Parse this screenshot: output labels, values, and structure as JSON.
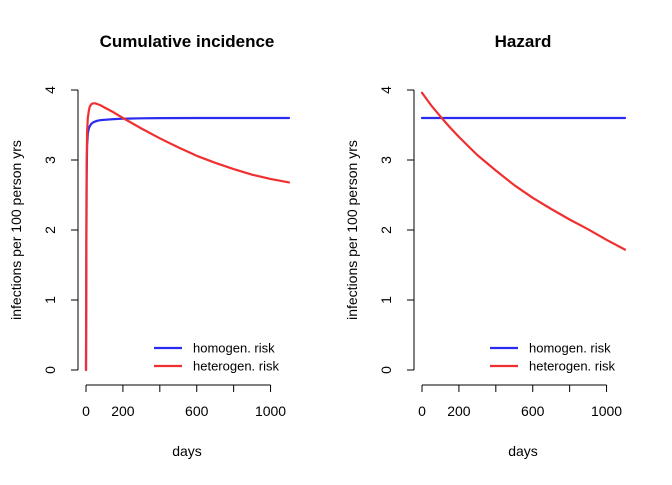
{
  "chart_data": [
    {
      "type": "line",
      "title": "Cumulative incidence",
      "xlabel": "days",
      "ylabel": "infections per 100 person yrs",
      "xlim": [
        0,
        1100
      ],
      "ylim": [
        0,
        4
      ],
      "xticks": [
        0,
        200,
        600,
        1000
      ],
      "xticks_minor": [
        400,
        800
      ],
      "yticks": [
        0,
        1,
        2,
        3,
        4
      ],
      "legend": {
        "position": "bottom-right"
      },
      "series": [
        {
          "name": "homogen. risk",
          "color": "#2a2af0",
          "x": [
            0,
            3,
            6,
            10,
            15,
            20,
            30,
            40,
            60,
            80,
            100,
            150,
            200,
            300,
            400,
            600,
            800,
            1000,
            1100
          ],
          "y": [
            0,
            2.7,
            3.2,
            3.38,
            3.45,
            3.48,
            3.52,
            3.54,
            3.56,
            3.57,
            3.575,
            3.585,
            3.59,
            3.595,
            3.598,
            3.6,
            3.6,
            3.6,
            3.6
          ]
        },
        {
          "name": "heterogen. risk",
          "color": "#f03030",
          "x": [
            0,
            3,
            6,
            10,
            15,
            20,
            30,
            40,
            50,
            60,
            80,
            100,
            150,
            200,
            300,
            400,
            500,
            600,
            700,
            800,
            900,
            1000,
            1100
          ],
          "y": [
            0,
            2.9,
            3.4,
            3.6,
            3.7,
            3.76,
            3.8,
            3.81,
            3.81,
            3.8,
            3.78,
            3.75,
            3.68,
            3.6,
            3.45,
            3.31,
            3.18,
            3.06,
            2.96,
            2.87,
            2.79,
            2.73,
            2.68
          ]
        }
      ]
    },
    {
      "type": "line",
      "title": "Hazard",
      "xlabel": "days",
      "ylabel": "infections per 100 person yrs",
      "xlim": [
        0,
        1100
      ],
      "ylim": [
        0,
        4
      ],
      "xticks": [
        0,
        200,
        600,
        1000
      ],
      "xticks_minor": [
        400,
        800
      ],
      "yticks": [
        0,
        1,
        2,
        3,
        4
      ],
      "legend": {
        "position": "bottom-right"
      },
      "series": [
        {
          "name": "homogen. risk",
          "color": "#2a2af0",
          "x": [
            0,
            100,
            200,
            300,
            400,
            500,
            600,
            700,
            800,
            900,
            1000,
            1100
          ],
          "y": [
            3.6,
            3.6,
            3.6,
            3.6,
            3.6,
            3.6,
            3.6,
            3.6,
            3.6,
            3.6,
            3.6,
            3.6
          ]
        },
        {
          "name": "heterogen. risk",
          "color": "#f03030",
          "x": [
            0,
            50,
            100,
            150,
            200,
            250,
            300,
            400,
            500,
            600,
            700,
            800,
            900,
            1000,
            1100
          ],
          "y": [
            3.96,
            3.78,
            3.62,
            3.47,
            3.33,
            3.2,
            3.07,
            2.85,
            2.64,
            2.46,
            2.3,
            2.15,
            2.01,
            1.86,
            1.72
          ]
        }
      ]
    }
  ]
}
